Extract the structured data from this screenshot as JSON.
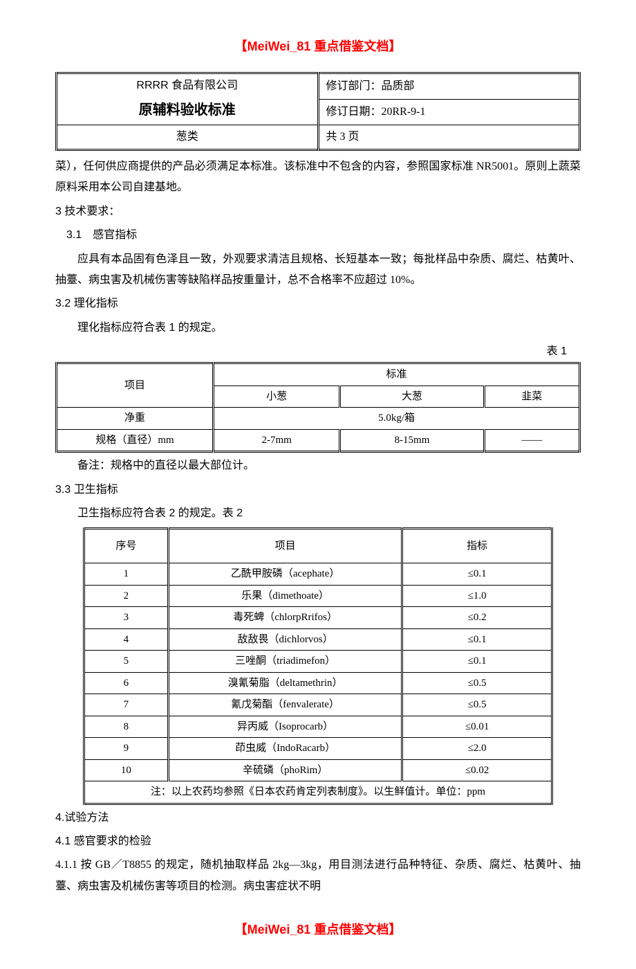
{
  "banner": "【MeiWei_81 重点借鉴文档】",
  "docHeader": {
    "company": "RRRR 食品有限公司",
    "title": "原辅料验收标准",
    "category": "葱类",
    "deptLabel": "修订部门：品质部",
    "dateLabel": "修订日期：20RR-9-1",
    "pages": "共 3 页"
  },
  "body": {
    "para1": "菜），任何供应商提供的产品必须满足本标准。该标准中不包含的内容，参照国家标准 NR5001。原则上蔬菜原料采用本公司自建基地。",
    "sec3": "3 技术要求：",
    "sec3_1_title": "3.1　感官指标",
    "sec3_1_body": "应具有本品固有色泽且一致，外观要求清洁且规格、长短基本一致；每批样品中杂质、腐烂、枯黄叶、抽薹、病虫害及机械伤害等缺陷样品按重量计，总不合格率不应超过 10%。",
    "sec3_2_title": "3.2 理化指标",
    "sec3_2_body": "理化指标应符合表 1 的规定。",
    "table1Label": "表 1",
    "table1Note": "备注：规格中的直径以最大部位计。",
    "sec3_3_title": "3.3 卫生指标",
    "sec3_3_body": "卫生指标应符合表 2 的规定。表 2",
    "sec4": "4.试验方法",
    "sec4_1": "4.1 感官要求的检验",
    "sec4_1_1": "4.1.1 按 GB／T8855 的规定，随机抽取样品 2kg—3kg，用目测法进行品种特征、杂质、腐烂、枯黄叶、抽薹、病虫害及机械伤害等项目的检测。病虫害症状不明"
  },
  "table1": {
    "header": {
      "item": "项目",
      "standard": "标准",
      "c1": "小葱",
      "c2": "大葱",
      "c3": "韭菜"
    },
    "rows": [
      {
        "label": "净重",
        "span": "5.0kg/箱"
      },
      {
        "label": "规格（直径）mm",
        "v1": "2-7mm",
        "v2": "8-15mm",
        "v3": "——"
      }
    ]
  },
  "table2": {
    "header": {
      "c1": "序号",
      "c2": "项目",
      "c3": "指标"
    },
    "rows": [
      {
        "n": "1",
        "name": "乙酰甲胺磷（acephate）",
        "limit": "≤0.1"
      },
      {
        "n": "2",
        "name": "乐果（dimethoate）",
        "limit": "≤1.0"
      },
      {
        "n": "3",
        "name": "毒死蜱（chlorpRrifos）",
        "limit": "≤0.2"
      },
      {
        "n": "4",
        "name": "敌敌畏（dichlorvos）",
        "limit": "≤0.1"
      },
      {
        "n": "5",
        "name": "三唑酮（triadimefon）",
        "limit": "≤0.1"
      },
      {
        "n": "6",
        "name": "溴氰菊脂（deltamethrin）",
        "limit": "≤0.5"
      },
      {
        "n": "7",
        "name": "氰戊菊酯（fenvalerate）",
        "limit": "≤0.5"
      },
      {
        "n": "8",
        "name": "异丙威（Isoprocarb）",
        "limit": "≤0.01"
      },
      {
        "n": "9",
        "name": "茚虫威（IndoRacarb）",
        "limit": "≤2.0"
      },
      {
        "n": "10",
        "name": "辛硫磷（phoRim）",
        "limit": "≤0.02"
      }
    ],
    "note": "注：以上农药均参照《日本农药肯定列表制度》。以生鲜值计。单位：ppm"
  }
}
